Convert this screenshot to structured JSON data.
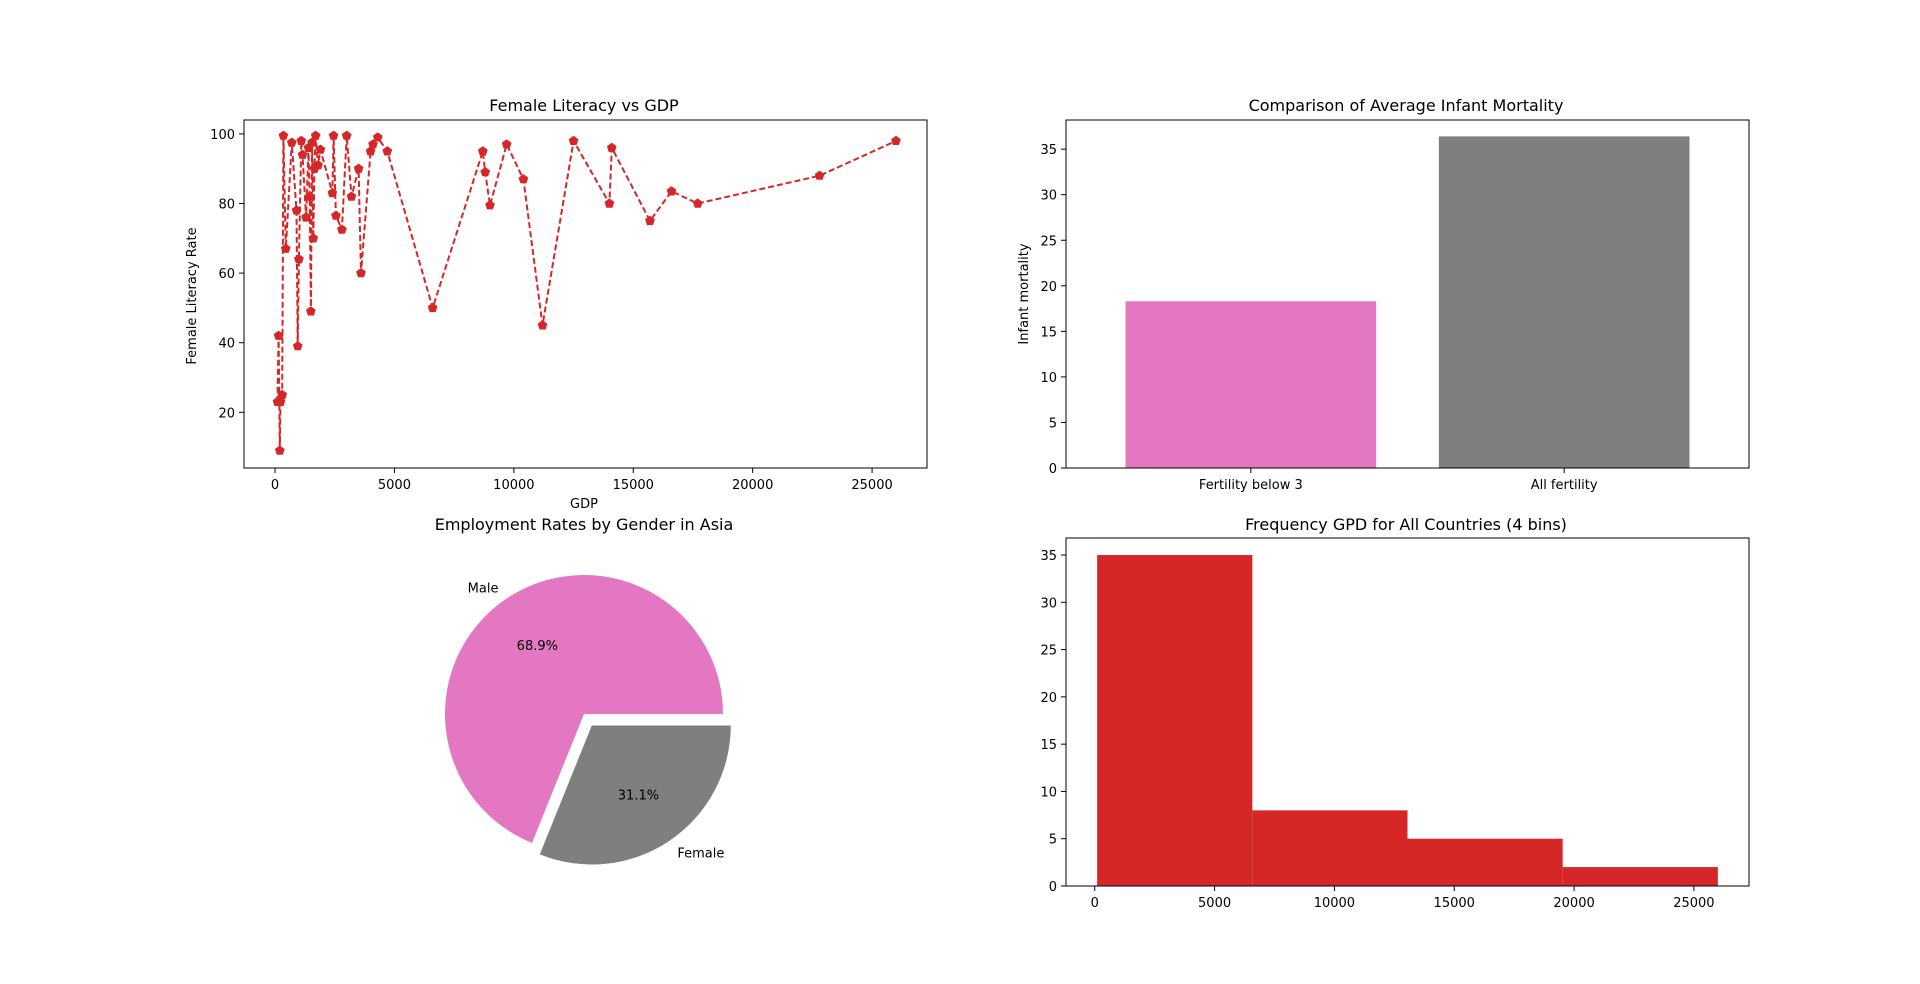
{
  "colors": {
    "line": "#d62728",
    "bar_fertility_below_3": "#e377c2",
    "bar_all_fertility": "#7f7f7f",
    "pie_male": "#e377c2",
    "pie_female": "#7f7f7f",
    "histogram": "#d62728"
  },
  "chart_data": [
    {
      "type": "line",
      "title": "Female Literacy vs GDP",
      "xlabel": "GDP",
      "ylabel": "Female Literacy Rate",
      "xlim": [
        -1300,
        27300
      ],
      "ylim": [
        4,
        104
      ],
      "xticks": [
        0,
        5000,
        10000,
        15000,
        20000,
        25000
      ],
      "yticks": [
        20,
        40,
        60,
        80,
        100
      ],
      "marker": "pentagon",
      "linestyle": "dashed",
      "points": [
        [
          100,
          23
        ],
        [
          150,
          42
        ],
        [
          200,
          9
        ],
        [
          230,
          23
        ],
        [
          300,
          25
        ],
        [
          350,
          99.5
        ],
        [
          450,
          67
        ],
        [
          700,
          97.5
        ],
        [
          900,
          78
        ],
        [
          950,
          39
        ],
        [
          1000,
          64
        ],
        [
          1100,
          98
        ],
        [
          1150,
          94
        ],
        [
          1300,
          76
        ],
        [
          1400,
          96
        ],
        [
          1450,
          82
        ],
        [
          1500,
          49
        ],
        [
          1550,
          97.5
        ],
        [
          1600,
          70
        ],
        [
          1650,
          90
        ],
        [
          1700,
          99.5
        ],
        [
          1800,
          91
        ],
        [
          1900,
          95.5
        ],
        [
          2400,
          83
        ],
        [
          2450,
          99.5
        ],
        [
          2550,
          76.5
        ],
        [
          2800,
          72.5
        ],
        [
          3000,
          99.5
        ],
        [
          3200,
          82
        ],
        [
          3500,
          90
        ],
        [
          3600,
          60
        ],
        [
          4000,
          95
        ],
        [
          4100,
          97
        ],
        [
          4300,
          99
        ],
        [
          4700,
          95
        ],
        [
          6600,
          50
        ],
        [
          8700,
          95
        ],
        [
          8800,
          89
        ],
        [
          9000,
          79.5
        ],
        [
          9700,
          97
        ],
        [
          10400,
          87
        ],
        [
          11200,
          45
        ],
        [
          12500,
          98
        ],
        [
          14000,
          80
        ],
        [
          14100,
          96
        ],
        [
          15700,
          75
        ],
        [
          16600,
          83.5
        ],
        [
          17700,
          80
        ],
        [
          22800,
          88
        ],
        [
          26000,
          98
        ]
      ]
    },
    {
      "type": "bar",
      "title": "Comparison of Average Infant Mortality",
      "xlabel": "",
      "ylabel": "Infant mortality",
      "categories": [
        "Fertility below 3",
        "All fertility"
      ],
      "values": [
        18.3,
        36.4
      ],
      "ylim": [
        0,
        38.2
      ],
      "yticks": [
        0,
        5,
        10,
        15,
        20,
        25,
        30,
        35
      ]
    },
    {
      "type": "pie",
      "title": "Employment Rates by Gender in Asia",
      "labels": [
        "Male",
        "Female"
      ],
      "values": [
        68.9,
        31.1
      ],
      "autopct": [
        "68.9%",
        "31.1%"
      ],
      "explode": [
        0,
        0.1
      ]
    },
    {
      "type": "bar",
      "title": "Frequency GPD for All Countries (4 bins)",
      "xlabel": "",
      "ylabel": "",
      "bins": [
        [
          100,
          6575
        ],
        [
          6575,
          13050
        ],
        [
          13050,
          19525
        ],
        [
          19525,
          26000
        ]
      ],
      "values": [
        35,
        8,
        5,
        2
      ],
      "xlim": [
        -1200,
        27300
      ],
      "ylim": [
        0,
        36.8
      ],
      "xticks": [
        0,
        5000,
        10000,
        15000,
        20000,
        25000
      ],
      "yticks": [
        0,
        5,
        10,
        15,
        20,
        25,
        30,
        35
      ]
    }
  ]
}
